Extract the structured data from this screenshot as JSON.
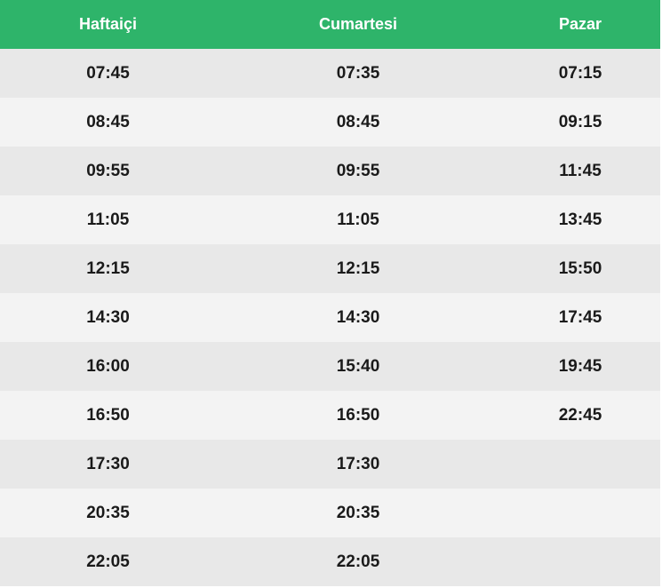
{
  "colors": {
    "header_background": "#2eb46a",
    "header_text": "#ffffff",
    "row_odd": "#e8e8e8",
    "row_even": "#f3f3f3",
    "cell_text": "#1a1a1a"
  },
  "table": {
    "headers": [
      "Haftaiçi",
      "Cumartesi",
      "Pazar"
    ],
    "rows": [
      [
        "07:45",
        "07:35",
        "07:15"
      ],
      [
        "08:45",
        "08:45",
        "09:15"
      ],
      [
        "09:55",
        "09:55",
        "11:45"
      ],
      [
        "11:05",
        "11:05",
        "13:45"
      ],
      [
        "12:15",
        "12:15",
        "15:50"
      ],
      [
        "14:30",
        "14:30",
        "17:45"
      ],
      [
        "16:00",
        "15:40",
        "19:45"
      ],
      [
        "16:50",
        "16:50",
        "22:45"
      ],
      [
        "17:30",
        "17:30",
        ""
      ],
      [
        "20:35",
        "20:35",
        ""
      ],
      [
        "22:05",
        "22:05",
        ""
      ]
    ]
  }
}
